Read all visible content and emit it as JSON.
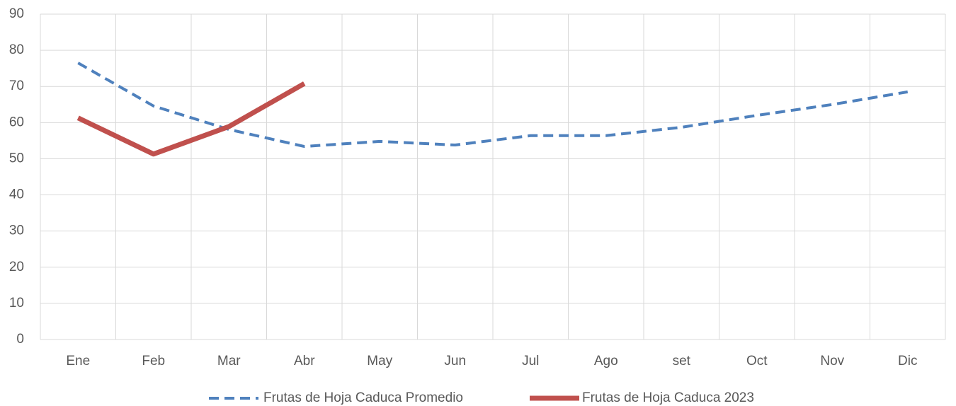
{
  "chart_data": {
    "type": "line",
    "categories": [
      "Ene",
      "Feb",
      "Mar",
      "Abr",
      "May",
      "Jun",
      "Jul",
      "Ago",
      "set",
      "Oct",
      "Nov",
      "Dic"
    ],
    "series": [
      {
        "name": "Frutas de Hoja Caduca Promedio",
        "color": "#4f81bd",
        "line_style": "dashed",
        "values": [
          76.5,
          64.6,
          58.1,
          53.4,
          54.8,
          53.8,
          56.4,
          56.4,
          58.7,
          62.0,
          65.0,
          68.5
        ]
      },
      {
        "name": "Frutas de Hoja Caduca 2023",
        "color": "#c0504d",
        "line_style": "solid",
        "values": [
          61.3,
          51.3,
          58.9,
          70.8,
          null,
          null,
          null,
          null,
          null,
          null,
          null,
          null
        ]
      }
    ],
    "ylim": [
      0,
      90
    ],
    "yticks": [
      0,
      10,
      20,
      30,
      40,
      50,
      60,
      70,
      80,
      90
    ],
    "grid": true,
    "legend": "bottom"
  }
}
